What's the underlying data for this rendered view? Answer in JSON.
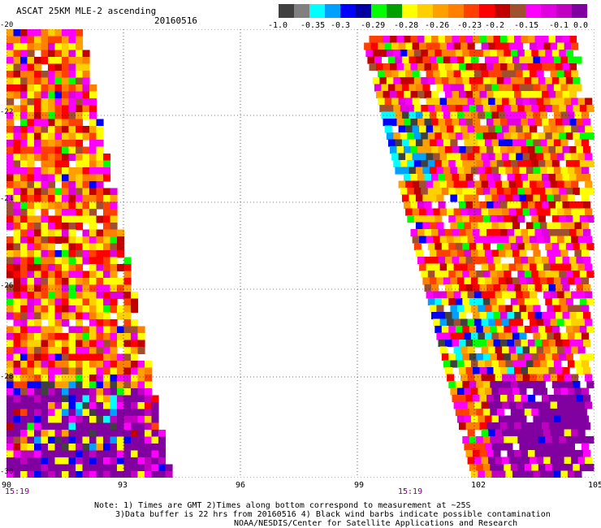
{
  "header": {
    "title": "ASCAT 25KM MLE-2 ascending",
    "date": "20160516"
  },
  "colorbar": {
    "colors": [
      "#404040",
      "#808080",
      "#00ffff",
      "#00a0ff",
      "#0000ff",
      "#0000a0",
      "#00ff00",
      "#00a000",
      "#ffff00",
      "#ffd000",
      "#ffa000",
      "#ff8000",
      "#ff4000",
      "#ff0000",
      "#c00000",
      "#a05030",
      "#ff00ff",
      "#e000e0",
      "#c000c0",
      "#8000a0"
    ],
    "labels": [
      "-1.0",
      "-0.35",
      "-0.3",
      "-0.29",
      "-0.28",
      "-0.26",
      "-0.23",
      "-0.2",
      "-0.15",
      "-0.1",
      "0.0"
    ]
  },
  "axes": {
    "lon_labels": [
      "90",
      "93",
      "96",
      "99",
      "102",
      "105"
    ],
    "lat_labels": [
      "-20",
      "-22",
      "-24",
      "-26",
      "-28",
      "-30"
    ]
  },
  "times": {
    "left": "15:19",
    "right": "15:19"
  },
  "notes": {
    "line1": "Note: 1) Times are GMT 2)Times along bottom correspond to measurement at ~25S",
    "line2": "3)Data buffer is 22 hrs from 20160516 4) Black wind barbs indicate possible contamination",
    "line3": "NOAA/NESDIS/Center for Satellite Applications and Research"
  }
}
